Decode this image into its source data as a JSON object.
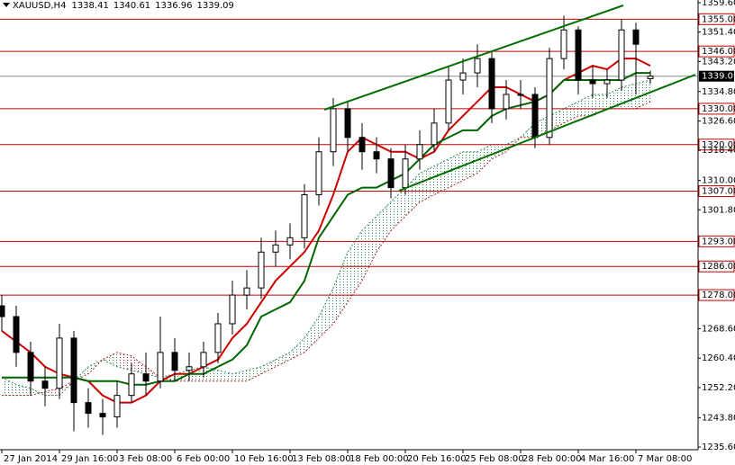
{
  "chart_data": {
    "type": "candlestick",
    "title": "XAUUSD,H4",
    "header_values": [
      1338.41,
      1340.61,
      1336.96,
      1339.09
    ],
    "categories": [
      "27 Jan 2014",
      null,
      null,
      null,
      "29 Jan 16:00",
      null,
      null,
      null,
      "3 Feb 08:00",
      null,
      null,
      null,
      "6 Feb 00:00",
      null,
      null,
      null,
      "10 Feb 16:00",
      null,
      null,
      null,
      "13 Feb 08:00",
      null,
      null,
      null,
      "18 Feb 00:00",
      null,
      null,
      null,
      "20 Feb 16:00",
      null,
      null,
      null,
      "25 Feb 08:00",
      null,
      null,
      null,
      "28 Feb 00:00",
      null,
      null,
      null,
      "4 Mar 16:00",
      null,
      null,
      null,
      "7 Mar 08:00",
      null
    ],
    "open": [
      1275,
      1272,
      1262,
      1254,
      1252,
      1266,
      1248,
      1245,
      1244,
      1250,
      1256,
      1254,
      1262,
      1257,
      1258,
      1262,
      1270,
      1278,
      1280,
      1290,
      1292,
      1294,
      1306,
      1318,
      1330,
      1322,
      1318,
      1316,
      1308,
      1316,
      1320,
      1326,
      1338,
      1340,
      1344,
      1330,
      1334,
      1334,
      1322,
      1344,
      1352,
      1338,
      1337,
      1338,
      1352,
      1338.41
    ],
    "high": [
      1278,
      1275,
      1265,
      1258,
      1270,
      1268,
      1252,
      1249,
      1254,
      1259,
      1262,
      1272,
      1266,
      1262,
      1265,
      1273,
      1282,
      1285,
      1294,
      1296,
      1298,
      1309,
      1322,
      1333,
      1332,
      1326,
      1322,
      1319,
      1320,
      1324,
      1330,
      1342,
      1344,
      1348,
      1346,
      1338,
      1338,
      1336,
      1347,
      1356,
      1353,
      1342,
      1341,
      1355,
      1354,
      1340.61
    ],
    "low": [
      1268,
      1258,
      1250,
      1247,
      1249,
      1240,
      1241,
      1239,
      1241,
      1248,
      1250,
      1252,
      1254,
      1254,
      1255,
      1259,
      1267,
      1274,
      1277,
      1286,
      1288,
      1291,
      1303,
      1314,
      1318,
      1313,
      1312,
      1305,
      1306,
      1313,
      1318,
      1324,
      1334,
      1336,
      1326,
      1327,
      1330,
      1319,
      1320,
      1341,
      1334,
      1333,
      1333,
      1335,
      1334,
      1336.96
    ],
    "close": [
      1272,
      1262,
      1254,
      1252,
      1266,
      1248,
      1245,
      1244,
      1250,
      1256,
      1254,
      1262,
      1257,
      1258,
      1262,
      1270,
      1278,
      1280,
      1290,
      1292,
      1294,
      1306,
      1318,
      1330,
      1322,
      1318,
      1316,
      1308,
      1316,
      1320,
      1326,
      1338,
      1340,
      1344,
      1330,
      1334,
      1334,
      1322,
      1344,
      1352,
      1338,
      1337,
      1338,
      1352,
      1348,
      1339.09
    ],
    "series": [
      {
        "name": "tenkan",
        "color": "#cc0000",
        "values": [
          1268,
          1265,
          1262,
          1258,
          1256,
          1255,
          1254,
          1250,
          1248,
          1248,
          1250,
          1254,
          1256,
          1256,
          1258,
          1260,
          1266,
          1270,
          1276,
          1282,
          1286,
          1290,
          1296,
          1306,
          1318,
          1322,
          1320,
          1318,
          1318,
          1316,
          1318,
          1324,
          1328,
          1332,
          1336,
          1336,
          1334,
          1332,
          1334,
          1338,
          1340,
          1342,
          1341,
          1344,
          1344,
          1342
        ]
      },
      {
        "name": "kijun",
        "color": "#006400",
        "values": [
          1255,
          1255,
          1255,
          1255,
          1255,
          1255,
          1254,
          1254,
          1254,
          1253,
          1253,
          1254,
          1254,
          1256,
          1256,
          1258,
          1260,
          1264,
          1272,
          1274,
          1276,
          1282,
          1294,
          1300,
          1306,
          1308,
          1308,
          1310,
          1312,
          1316,
          1320,
          1322,
          1324,
          1324,
          1328,
          1330,
          1331,
          1332,
          1334,
          1338,
          1338,
          1338,
          1338,
          1338,
          1340,
          1340
        ]
      },
      {
        "name": "span_a",
        "color": "#2e8b57",
        "values": [
          1255,
          1253,
          1252,
          1250,
          1250,
          1254,
          1258,
          1260,
          1258,
          1257,
          1256,
          1255,
          1256,
          1257,
          1258,
          1257,
          1256,
          1257,
          1258,
          1260,
          1262,
          1266,
          1272,
          1280,
          1290,
          1296,
          1300,
          1304,
          1308,
          1312,
          1314,
          1316,
          1318,
          1318,
          1320,
          1320,
          1322,
          1326,
          1328,
          1330,
          1332,
          1334,
          1334,
          1336,
          1337,
          1338
        ]
      },
      {
        "name": "span_b",
        "color": "#b22222",
        "values": [
          1250,
          1250,
          1250,
          1251,
          1252,
          1254,
          1256,
          1260,
          1262,
          1261,
          1258,
          1255,
          1254,
          1254,
          1254,
          1254,
          1254,
          1254,
          1256,
          1258,
          1260,
          1262,
          1266,
          1270,
          1276,
          1282,
          1290,
          1296,
          1300,
          1304,
          1306,
          1308,
          1310,
          1312,
          1316,
          1318,
          1322,
          1322,
          1324,
          1326,
          1328,
          1328,
          1330,
          1330,
          1330,
          1332
        ]
      }
    ],
    "ylim": [
      1234.85,
      1360.35
    ],
    "yticks": [
      {
        "value": 1359.6,
        "label": "1359.60"
      },
      {
        "value": 1351.4,
        "label": "1351.40"
      },
      {
        "value": 1343.2,
        "label": "1343.20"
      },
      {
        "value": 1334.8,
        "label": "1334.80"
      },
      {
        "value": 1326.6,
        "label": "1326.60"
      },
      {
        "value": 1318.4,
        "label": "1318.40"
      },
      {
        "value": 1310,
        "label": "1310.00"
      },
      {
        "value": 1301.8,
        "label": "1301.80"
      },
      {
        "value": 1268.6,
        "label": "1268.60"
      },
      {
        "value": 1260.4,
        "label": "1260.40"
      },
      {
        "value": 1252.2,
        "label": "1252.20"
      },
      {
        "value": 1243.8,
        "label": "1243.80"
      },
      {
        "value": 1235.6,
        "label": "1235.60"
      }
    ],
    "levels": {
      "color": "#c00000",
      "values": [
        1355,
        1346,
        1330,
        1320,
        1307,
        1293,
        1286,
        1278
      ],
      "value_labels": [
        "1355.00",
        "1346.00",
        "1330.00",
        "1320.00",
        "1307.00",
        "1293.00",
        "1286.00",
        "1278.00"
      ]
    },
    "last_price": 1339.09
  }
}
